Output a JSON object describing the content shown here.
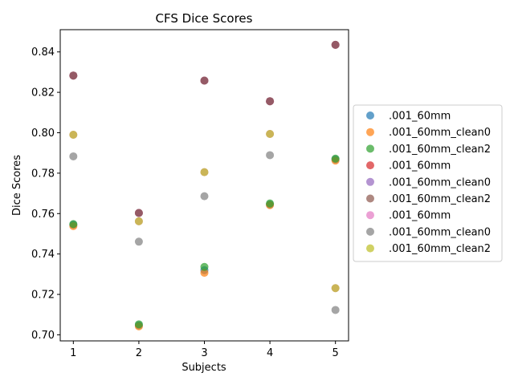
{
  "chart_data": {
    "type": "scatter",
    "title": "CFS Dice Scores",
    "xlabel": "Subjects",
    "ylabel": "Dice Scores",
    "x": [
      1,
      2,
      3,
      4,
      5
    ],
    "x_ticks": [
      "1",
      "2",
      "3",
      "4",
      "5"
    ],
    "y_ticks": [
      "0.70",
      "0.72",
      "0.74",
      "0.76",
      "0.78",
      "0.80",
      "0.82",
      "0.84"
    ],
    "xlim": [
      0.8,
      5.2
    ],
    "ylim": [
      0.697,
      0.851
    ],
    "grid": false,
    "legend_position": "right",
    "series": [
      {
        "name": ".001_60mm",
        "color": "#1f77b4",
        "values": [
          0.7545,
          0.7047,
          0.732,
          0.7645,
          0.7868
        ]
      },
      {
        "name": ".001_60mm_clean0",
        "color": "#ff7f0e",
        "values": [
          0.7538,
          0.7042,
          0.7307,
          0.7642,
          0.7862
        ]
      },
      {
        "name": ".001_60mm_clean2",
        "color": "#2ca02c",
        "values": [
          0.7548,
          0.7052,
          0.7336,
          0.765,
          0.7872
        ]
      },
      {
        "name": ".001_60mm",
        "color": "#d62728",
        "values": [
          0.8283,
          0.7603,
          0.8258,
          0.8156,
          0.8435
        ]
      },
      {
        "name": ".001_60mm_clean0",
        "color": "#9467bd",
        "values": [
          0.8283,
          0.7603,
          0.8258,
          0.8156,
          0.8435
        ]
      },
      {
        "name": ".001_60mm_clean2",
        "color": "#8c564b",
        "values": [
          0.8283,
          0.7603,
          0.8258,
          0.8156,
          0.8435
        ]
      },
      {
        "name": ".001_60mm",
        "color": "#e377c2",
        "values": [
          0.799,
          0.7562,
          0.7805,
          0.7994,
          0.7231
        ]
      },
      {
        "name": ".001_60mm_clean0",
        "color": "#7f7f7f",
        "values": [
          0.7883,
          0.7461,
          0.7686,
          0.7889,
          0.7123
        ]
      },
      {
        "name": ".001_60mm_clean2",
        "color": "#bcbd22",
        "values": [
          0.799,
          0.7562,
          0.7805,
          0.7994,
          0.7231
        ]
      }
    ]
  }
}
